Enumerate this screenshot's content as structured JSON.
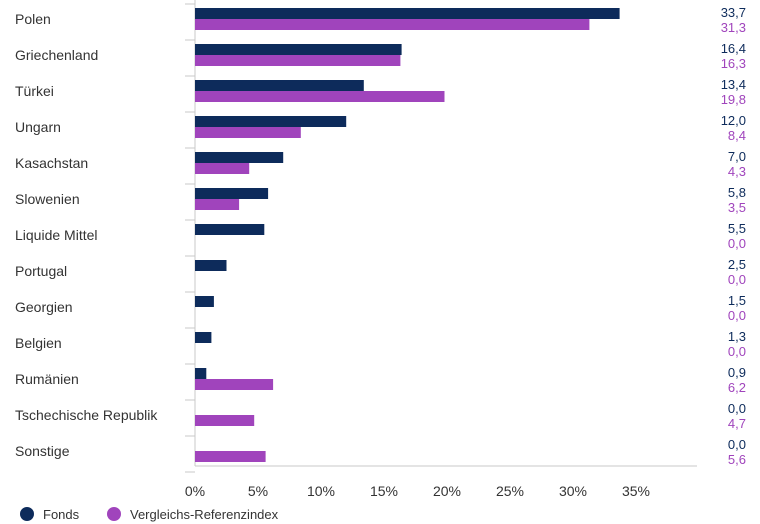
{
  "chart_data": {
    "type": "bar",
    "orientation": "horizontal",
    "categories": [
      "Polen",
      "Griechenland",
      "Türkei",
      "Ungarn",
      "Kasachstan",
      "Slowenien",
      "Liquide Mittel",
      "Portugal",
      "Georgien",
      "Belgien",
      "Rumänien",
      "Tschechische Republik",
      "Sonstige"
    ],
    "series": [
      {
        "name": "Fonds",
        "color": "#0d2b5b",
        "values": [
          33.7,
          16.4,
          13.4,
          12.0,
          7.0,
          5.8,
          5.5,
          2.5,
          1.5,
          1.3,
          0.9,
          0.0,
          0.0
        ],
        "labels": [
          "33,7",
          "16,4",
          "13,4",
          "12,0",
          "7,0",
          "5,8",
          "5,5",
          "2,5",
          "1,5",
          "1,3",
          "0,9",
          "0,0",
          "0,0"
        ]
      },
      {
        "name": "Vergleichs-Referenzindex",
        "color": "#a044bc",
        "values": [
          31.3,
          16.3,
          19.8,
          8.4,
          4.3,
          3.5,
          0.0,
          0.0,
          0.0,
          0.0,
          6.2,
          4.7,
          5.6
        ],
        "labels": [
          "31,3",
          "16,3",
          "19,8",
          "8,4",
          "4,3",
          "3,5",
          "0,0",
          "0,0",
          "0,0",
          "0,0",
          "6,2",
          "4,7",
          "5,6"
        ]
      }
    ],
    "xlim": [
      0,
      40
    ],
    "xticks": [
      0,
      5,
      10,
      15,
      20,
      25,
      30,
      35
    ],
    "xtick_labels": [
      "0%",
      "5%",
      "10%",
      "15%",
      "20%",
      "25%",
      "30%",
      "35%"
    ],
    "grid": false,
    "legend_position": "bottom-left"
  }
}
